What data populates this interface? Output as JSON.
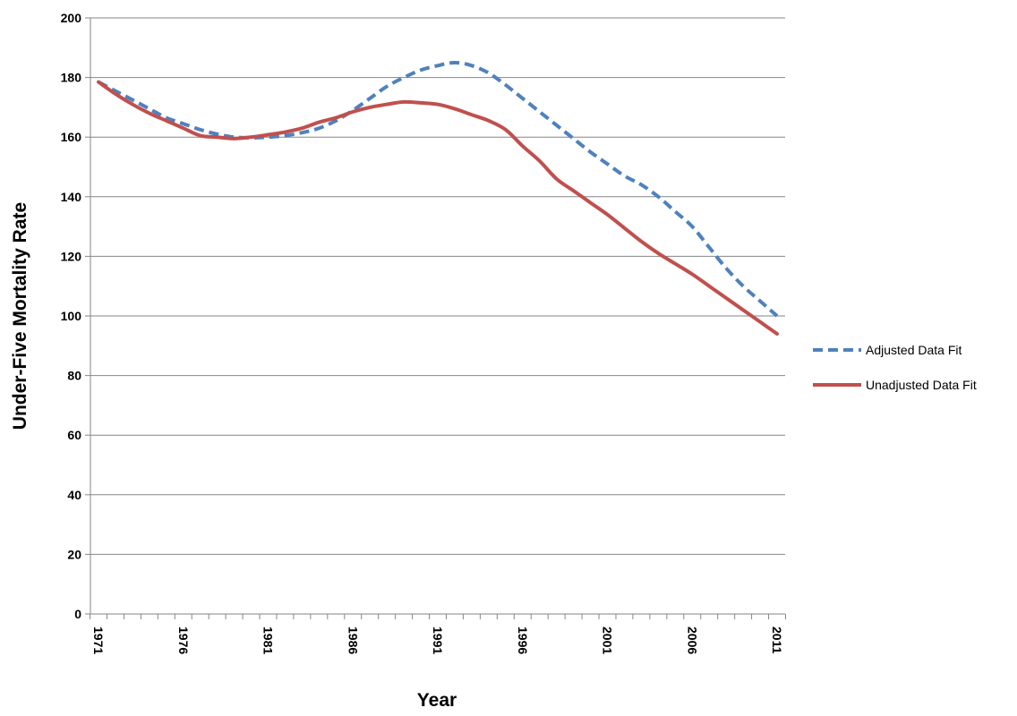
{
  "chart_data": {
    "type": "line",
    "xlabel": "Year",
    "ylabel": "Under-Five Mortality Rate",
    "xlim": [
      1971,
      2011
    ],
    "ylim": [
      0,
      200
    ],
    "y_ticks": [
      0,
      20,
      40,
      60,
      80,
      100,
      120,
      140,
      160,
      180,
      200
    ],
    "x_tick_labels": [
      "1971",
      "1976",
      "1981",
      "1986",
      "1991",
      "1996",
      "2001",
      "2006",
      "2011"
    ],
    "grid": "horizontal",
    "legend_position": "right",
    "x": [
      1971,
      1972,
      1973,
      1974,
      1975,
      1976,
      1977,
      1978,
      1979,
      1980,
      1981,
      1982,
      1983,
      1984,
      1985,
      1986,
      1987,
      1988,
      1989,
      1990,
      1991,
      1992,
      1993,
      1994,
      1995,
      1996,
      1997,
      1998,
      1999,
      2000,
      2001,
      2002,
      2003,
      2004,
      2005,
      2006,
      2007,
      2008,
      2009,
      2010,
      2011
    ],
    "series": [
      {
        "name": "Adjusted Data Fit",
        "color": "#4F81BD",
        "style": "dashed",
        "values": [
          178.5,
          175.5,
          172.5,
          169.5,
          166.5,
          164.5,
          162.5,
          161,
          160,
          159.8,
          160,
          160.5,
          161.5,
          163,
          165.5,
          169,
          173,
          177,
          180,
          182.5,
          184,
          185,
          184,
          181.5,
          177.5,
          173,
          168.5,
          164,
          159.5,
          155,
          151,
          147,
          144,
          140,
          135,
          130,
          123,
          116,
          110,
          105,
          100
        ]
      },
      {
        "name": "Unadjusted Data Fit",
        "color": "#C0504D",
        "style": "solid",
        "values": [
          178.5,
          174.5,
          171,
          168,
          165.5,
          163,
          160.5,
          160,
          159.5,
          160,
          160.8,
          161.7,
          163,
          165,
          166.5,
          168.5,
          170,
          171,
          171.8,
          171.5,
          171,
          169.5,
          167.5,
          165.5,
          162.5,
          157,
          152,
          146,
          142,
          138,
          134,
          129.5,
          125,
          121,
          117.5,
          114,
          110,
          106,
          102,
          98,
          94
        ]
      }
    ]
  }
}
